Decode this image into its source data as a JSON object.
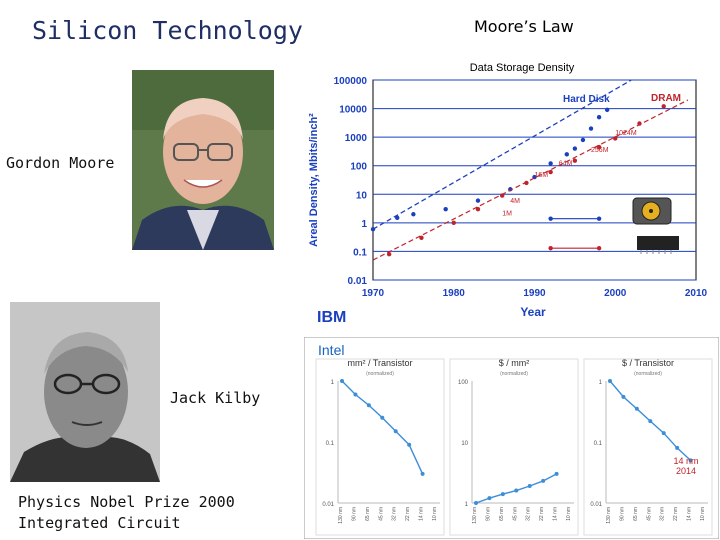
{
  "slide": {
    "title": "Silicon Technology",
    "moore_heading": "Moore’s Law",
    "gordon_label": "Gordon Moore",
    "kilby_label": "Jack Kilby",
    "nobel_line1": "Physics Nobel Prize 2000",
    "nobel_line2": "Integrated Circuit"
  },
  "photos": {
    "gordon_moore": "portrait-photo",
    "jack_kilby": "portrait-photo"
  },
  "colors": {
    "title": "#1f2f66",
    "hard_disk": "#1a3fbf",
    "dram": "#c0232b",
    "intel_line": "#3c8ed9"
  },
  "chart_data": [
    {
      "type": "scatter",
      "title": "Data  Storage  Density",
      "xlabel": "Year",
      "ylabel": "Areal Density, Mbits/inch²",
      "xlim": [
        1970,
        2010
      ],
      "ylim": [
        0.01,
        100000
      ],
      "yscale": "log",
      "x_ticks": [
        "1970",
        "1980",
        "1990",
        "2000",
        "2010"
      ],
      "y_ticks": [
        "100000",
        "10000",
        "1000",
        "100",
        "10",
        "1",
        "0.1",
        "0.01"
      ],
      "grid": true,
      "brand": "IBM",
      "series": [
        {
          "name": "Hard Disk",
          "color": "#1a3fbf",
          "points": [
            [
              1970,
              0.6
            ],
            [
              1973,
              1.5
            ],
            [
              1975,
              2
            ],
            [
              1979,
              3
            ],
            [
              1983,
              6
            ],
            [
              1987,
              15
            ],
            [
              1990,
              40
            ],
            [
              1992,
              120
            ],
            [
              1994,
              250
            ],
            [
              1995,
              400
            ],
            [
              1996,
              800
            ],
            [
              1997,
              2000
            ],
            [
              1998,
              5000
            ],
            [
              1999,
              9000
            ]
          ],
          "trend": [
            [
              1970,
              0.6
            ],
            [
              2002,
              100000
            ]
          ]
        },
        {
          "name": "DRAM",
          "color": "#c0232b",
          "points": [
            [
              1972,
              0.08
            ],
            [
              1976,
              0.3
            ],
            [
              1980,
              1
            ],
            [
              1983,
              3
            ],
            [
              1986,
              9
            ],
            [
              1989,
              25
            ],
            [
              1992,
              60
            ],
            [
              1995,
              150
            ],
            [
              1998,
              450
            ],
            [
              2000,
              900
            ],
            [
              2003,
              3000
            ],
            [
              2006,
              12000
            ]
          ],
          "trend": [
            [
              1970,
              0.05
            ],
            [
              2009,
              20000
            ]
          ]
        }
      ],
      "annotations": [
        {
          "text": "4M",
          "x": 1987,
          "y": 5
        },
        {
          "text": "1M",
          "x": 1986,
          "y": 1.8
        },
        {
          "text": "16M",
          "x": 1990,
          "y": 40
        },
        {
          "text": "64M",
          "x": 1993,
          "y": 100
        },
        {
          "text": "256M",
          "x": 1997,
          "y": 300
        },
        {
          "text": "1024M",
          "x": 2000,
          "y": 1200
        }
      ],
      "flat_lines": [
        {
          "color": "#1a3fbf",
          "x": [
            1992,
            1998
          ],
          "y": 1.4
        },
        {
          "color": "#c0232b",
          "x": [
            1992,
            1998
          ],
          "y": 0.13
        }
      ]
    },
    {
      "type": "line",
      "brand": "Intel",
      "subtitle_note": "(normalized)",
      "panels": [
        {
          "title": "mm² / Transistor",
          "y_ticks": [
            "1",
            "0.1",
            "0.01"
          ],
          "values": [
            1,
            0.6,
            0.4,
            0.25,
            0.15,
            0.09,
            0.03
          ]
        },
        {
          "title": "$ / mm²",
          "y_ticks": [
            "100",
            "10",
            "1"
          ],
          "values": [
            1,
            1.2,
            1.4,
            1.6,
            1.9,
            2.3,
            3.0
          ]
        },
        {
          "title": "$ / Transistor",
          "y_ticks": [
            "1",
            "0.1",
            "0.01"
          ],
          "values": [
            1,
            0.55,
            0.35,
            0.22,
            0.14,
            0.08,
            0.05
          ],
          "annotation_line1": "14 nm",
          "annotation_line2": "2014"
        }
      ],
      "x_ticks": [
        "130 nm",
        "90 nm",
        "65 nm",
        "45 nm",
        "32 nm",
        "22 nm",
        "14 nm",
        "10 nm"
      ]
    }
  ]
}
